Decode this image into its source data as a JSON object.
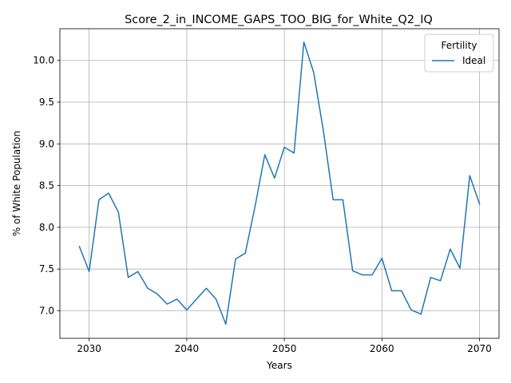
{
  "chart_data": {
    "type": "line",
    "title": "Score_2_in_INCOME_GAPS_TOO_BIG_for_White_Q2_IQ",
    "xlabel": "Years",
    "ylabel": "% of White Population",
    "xlim": [
      2027,
      2072
    ],
    "ylim": [
      6.67,
      10.38
    ],
    "xticks": [
      2030,
      2040,
      2050,
      2060,
      2070
    ],
    "yticks": [
      7.0,
      7.5,
      8.0,
      8.5,
      9.0,
      9.5,
      10.0
    ],
    "xtick_labels": [
      "2030",
      "2040",
      "2050",
      "2060",
      "2070"
    ],
    "ytick_labels": [
      "7.0",
      "7.5",
      "8.0",
      "8.5",
      "9.0",
      "9.5",
      "10.0"
    ],
    "grid": true,
    "legend": {
      "title": "Fertility",
      "placement": "top-right"
    },
    "series": [
      {
        "name": "Ideal",
        "color": "#1f77b4",
        "x": [
          2029,
          2030,
          2031,
          2032,
          2033,
          2034,
          2035,
          2036,
          2037,
          2038,
          2039,
          2040,
          2041,
          2042,
          2043,
          2044,
          2045,
          2046,
          2047,
          2048,
          2049,
          2050,
          2051,
          2052,
          2053,
          2054,
          2055,
          2056,
          2057,
          2058,
          2059,
          2060,
          2061,
          2062,
          2063,
          2064,
          2065,
          2066,
          2067,
          2068,
          2069,
          2070
        ],
        "y": [
          7.77,
          7.47,
          8.33,
          8.41,
          8.18,
          7.4,
          7.47,
          7.27,
          7.2,
          7.08,
          7.14,
          7.01,
          7.14,
          7.27,
          7.14,
          6.84,
          7.62,
          7.69,
          8.25,
          8.87,
          8.59,
          8.96,
          8.89,
          10.22,
          9.86,
          9.16,
          8.33,
          8.33,
          7.48,
          7.43,
          7.43,
          7.63,
          7.24,
          7.24,
          7.01,
          6.96,
          7.4,
          7.36,
          7.74,
          7.51,
          8.62,
          8.28
        ]
      }
    ]
  }
}
